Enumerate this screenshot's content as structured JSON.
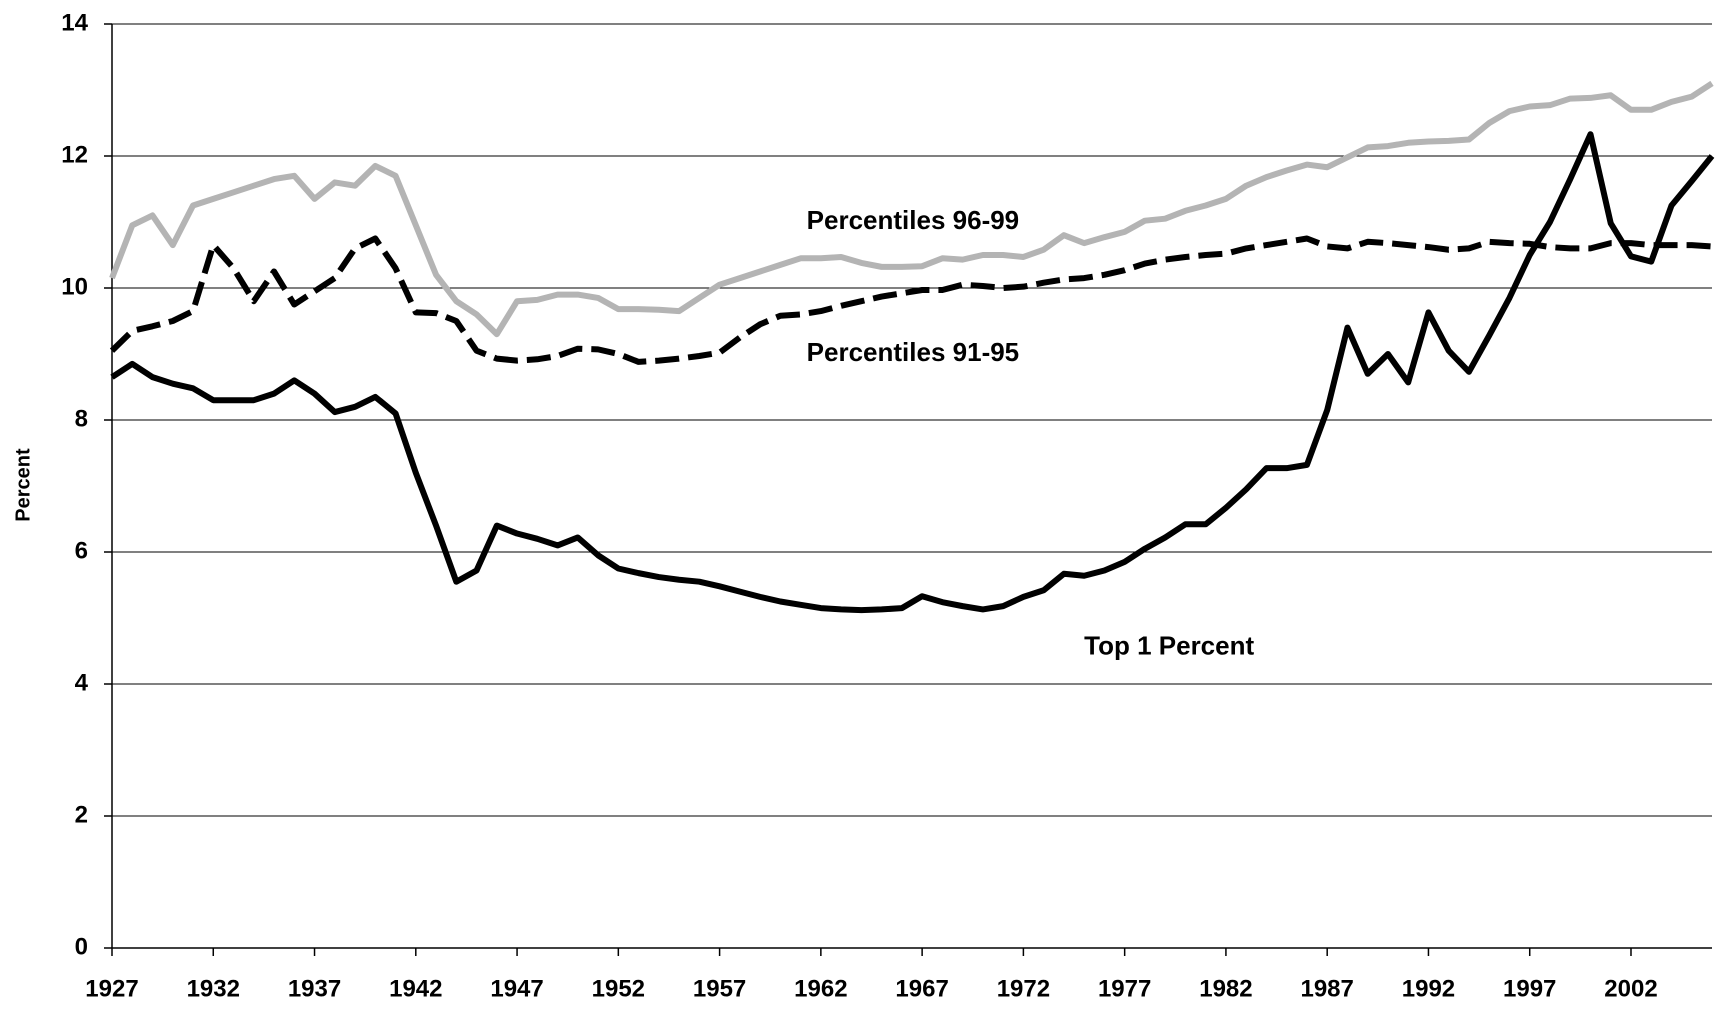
{
  "chart_data": {
    "type": "line",
    "y_label": "Percent",
    "x": [
      1927,
      1928,
      1929,
      1930,
      1931,
      1932,
      1933,
      1934,
      1935,
      1936,
      1937,
      1938,
      1939,
      1940,
      1941,
      1942,
      1943,
      1944,
      1945,
      1946,
      1947,
      1948,
      1949,
      1950,
      1951,
      1952,
      1953,
      1954,
      1955,
      1956,
      1957,
      1958,
      1959,
      1960,
      1961,
      1962,
      1963,
      1964,
      1965,
      1966,
      1967,
      1968,
      1969,
      1970,
      1971,
      1972,
      1973,
      1974,
      1975,
      1976,
      1977,
      1978,
      1979,
      1980,
      1981,
      1982,
      1983,
      1984,
      1985,
      1986,
      1987,
      1988,
      1989,
      1990,
      1991,
      1992,
      1993,
      1994,
      1995,
      1996,
      1997,
      1998,
      1999,
      2000,
      2001,
      2002,
      2003,
      2004,
      2005,
      2006
    ],
    "xlim": [
      1927,
      2006
    ],
    "xticks": [
      1927,
      1932,
      1937,
      1942,
      1947,
      1952,
      1957,
      1962,
      1967,
      1972,
      1977,
      1982,
      1987,
      1992,
      1997,
      2002
    ],
    "ylim": [
      0,
      14
    ],
    "yticks": [
      0,
      2,
      4,
      6,
      8,
      10,
      12,
      14
    ],
    "grid": true,
    "series": [
      {
        "name": "Percentiles 96-99",
        "color": "#b4b4b4",
        "style": "solid",
        "values": [
          10.15,
          10.95,
          11.1,
          10.65,
          11.25,
          11.35,
          11.45,
          11.55,
          11.65,
          11.7,
          11.35,
          11.6,
          11.55,
          11.85,
          11.7,
          10.95,
          10.2,
          9.8,
          9.6,
          9.3,
          9.8,
          9.82,
          9.9,
          9.9,
          9.85,
          9.68,
          9.68,
          9.67,
          9.65,
          9.85,
          10.05,
          10.15,
          10.25,
          10.35,
          10.45,
          10.45,
          10.47,
          10.38,
          10.32,
          10.32,
          10.33,
          10.45,
          10.43,
          10.5,
          10.5,
          10.47,
          10.58,
          10.8,
          10.68,
          10.77,
          10.85,
          11.02,
          11.05,
          11.17,
          11.25,
          11.35,
          11.55,
          11.68,
          11.78,
          11.87,
          11.83,
          11.98,
          12.13,
          12.15,
          12.2,
          12.22,
          12.23,
          12.25,
          12.5,
          12.68,
          12.75,
          12.77,
          12.87,
          12.88,
          12.92,
          12.7,
          12.7,
          12.82,
          12.9,
          13.1
        ]
      },
      {
        "name": "Percentiles 91-95",
        "color": "#000000",
        "style": "dashed",
        "values": [
          9.05,
          9.35,
          9.42,
          9.5,
          9.65,
          10.65,
          10.3,
          9.8,
          10.25,
          9.75,
          9.95,
          10.15,
          10.6,
          10.75,
          10.3,
          9.63,
          9.62,
          9.5,
          9.05,
          8.93,
          8.9,
          8.92,
          8.97,
          9.08,
          9.07,
          9.0,
          8.88,
          8.9,
          8.93,
          8.97,
          9.02,
          9.25,
          9.45,
          9.58,
          9.6,
          9.65,
          9.73,
          9.8,
          9.87,
          9.92,
          9.97,
          9.97,
          10.05,
          10.03,
          10.0,
          10.02,
          10.08,
          10.13,
          10.15,
          10.2,
          10.27,
          10.37,
          10.43,
          10.47,
          10.5,
          10.52,
          10.6,
          10.65,
          10.7,
          10.75,
          10.63,
          10.6,
          10.7,
          10.68,
          10.65,
          10.62,
          10.58,
          10.6,
          10.7,
          10.68,
          10.67,
          10.62,
          10.6,
          10.6,
          10.68,
          10.68,
          10.65,
          10.65,
          10.65,
          10.63
        ]
      },
      {
        "name": "Top 1 Percent",
        "color": "#000000",
        "style": "solid",
        "values": [
          8.65,
          8.85,
          8.65,
          8.55,
          8.48,
          8.3,
          8.3,
          8.3,
          8.4,
          8.6,
          8.4,
          8.12,
          8.2,
          8.35,
          8.1,
          7.2,
          6.4,
          5.55,
          5.72,
          6.4,
          6.28,
          6.2,
          6.1,
          6.22,
          5.95,
          5.75,
          5.68,
          5.62,
          5.58,
          5.55,
          5.48,
          5.4,
          5.32,
          5.25,
          5.2,
          5.15,
          5.13,
          5.12,
          5.13,
          5.15,
          5.33,
          5.24,
          5.18,
          5.13,
          5.18,
          5.32,
          5.42,
          5.67,
          5.64,
          5.72,
          5.85,
          6.05,
          6.22,
          6.42,
          6.42,
          6.67,
          6.95,
          7.27,
          7.27,
          7.32,
          8.15,
          9.4,
          8.7,
          9.0,
          8.57,
          9.63,
          9.05,
          8.73,
          9.28,
          9.85,
          10.5,
          11.0,
          11.65,
          12.33,
          10.98,
          10.48,
          10.4,
          11.25,
          11.62,
          12.0
        ]
      }
    ]
  }
}
